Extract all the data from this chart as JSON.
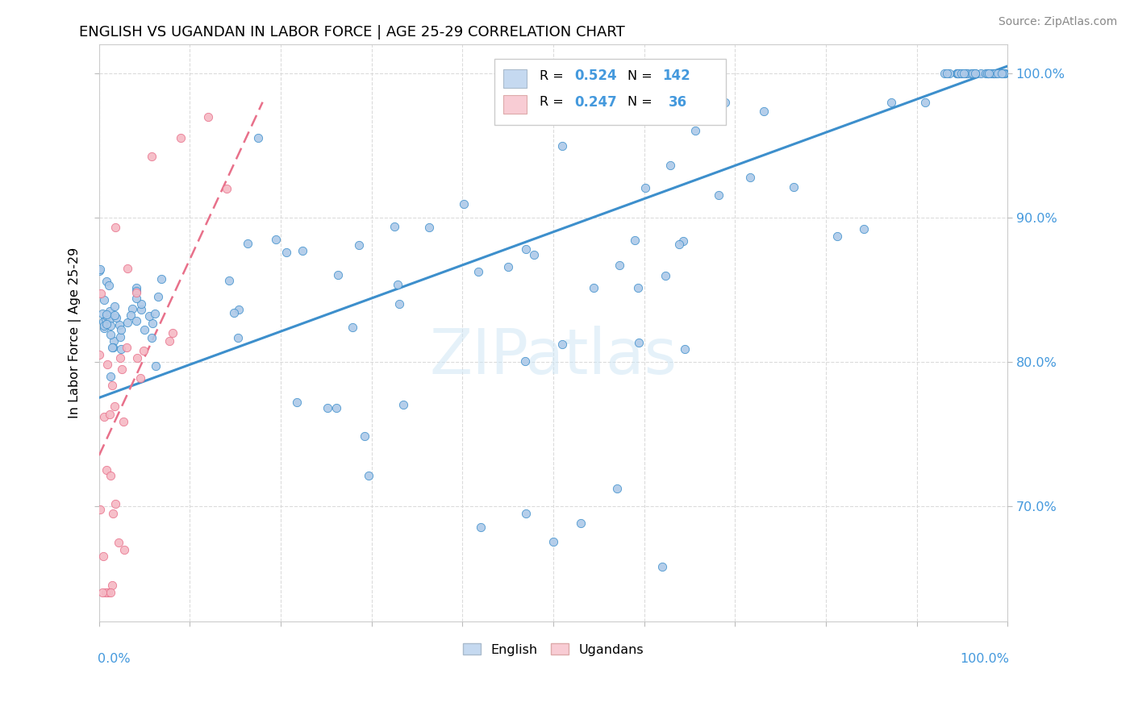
{
  "title": "ENGLISH VS UGANDAN IN LABOR FORCE | AGE 25-29 CORRELATION CHART",
  "source": "Source: ZipAtlas.com",
  "ylabel": "In Labor Force | Age 25-29",
  "english_R": 0.524,
  "english_N": 142,
  "ugandan_R": 0.247,
  "ugandan_N": 36,
  "dot_color_english": "#adc9e8",
  "dot_color_ugandan": "#f5b8c4",
  "line_color_english": "#3d8fcc",
  "line_color_ugandan": "#e8708a",
  "legend_box_english": "#c5d9f0",
  "legend_box_ugandan": "#f8ccd4",
  "background_color": "#ffffff",
  "grid_color": "#d8d8d8",
  "watermark": "ZIPatlas",
  "right_tick_color": "#4499dd",
  "xlim": [
    0.0,
    1.0
  ],
  "ylim": [
    0.62,
    1.02
  ],
  "yticks": [
    0.7,
    0.8,
    0.9,
    1.0
  ],
  "ytick_labels": [
    "70.0%",
    "80.0%",
    "90.0%",
    "100.0%"
  ],
  "eng_line_x0": 0.0,
  "eng_line_y0": 0.775,
  "eng_line_x1": 1.0,
  "eng_line_y1": 1.005,
  "ug_line_x0": 0.0,
  "ug_line_y0": 0.735,
  "ug_line_x1": 0.18,
  "ug_line_y1": 0.98
}
